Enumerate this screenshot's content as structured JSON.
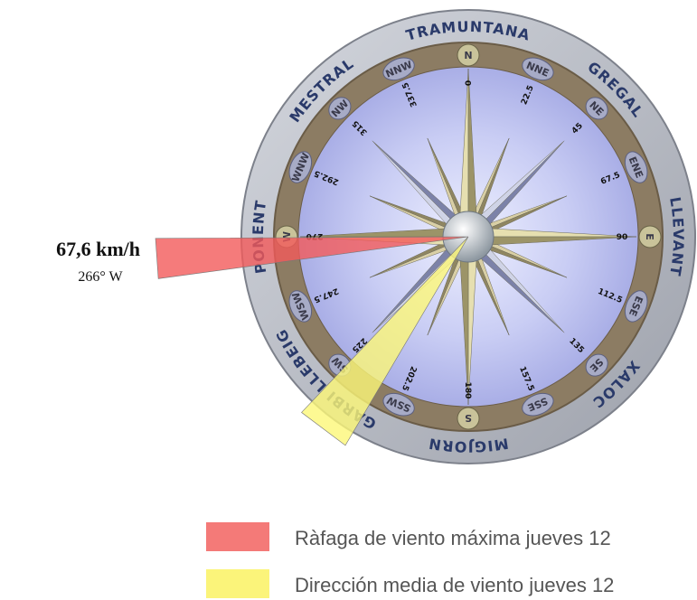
{
  "compass": {
    "points": [
      {
        "name": "N",
        "degree": 0
      },
      {
        "name": "NNE",
        "degree": 22.5
      },
      {
        "name": "NE",
        "degree": 45
      },
      {
        "name": "ENE",
        "degree": 67.5
      },
      {
        "name": "E",
        "degree": 90
      },
      {
        "name": "ESE",
        "degree": 112.5
      },
      {
        "name": "SE",
        "degree": 135
      },
      {
        "name": "SSE",
        "degree": 157.5
      },
      {
        "name": "S",
        "degree": 180
      },
      {
        "name": "SSW",
        "degree": 202.5
      },
      {
        "name": "SW",
        "degree": 225
      },
      {
        "name": "WSW",
        "degree": 247.5
      },
      {
        "name": "W",
        "degree": 270
      },
      {
        "name": "WNW",
        "degree": 292.5
      },
      {
        "name": "NW",
        "degree": 315
      },
      {
        "name": "NNW",
        "degree": 337.5
      }
    ],
    "winds": [
      "TRAMUNTANA",
      "GREGAL",
      "LLEVANT",
      "XALOC",
      "MIGJORN",
      "GARBI LLEBEIG",
      "PONENT",
      "MESTRAL"
    ]
  },
  "gust": {
    "speed": "67,6 km/h",
    "direction": 266,
    "direction_label": "266° W"
  },
  "mean": {
    "direction": 217
  },
  "legend": [
    "Ràfaga de viento máxima jueves 12",
    "Dirección media de viento jueves 12"
  ]
}
